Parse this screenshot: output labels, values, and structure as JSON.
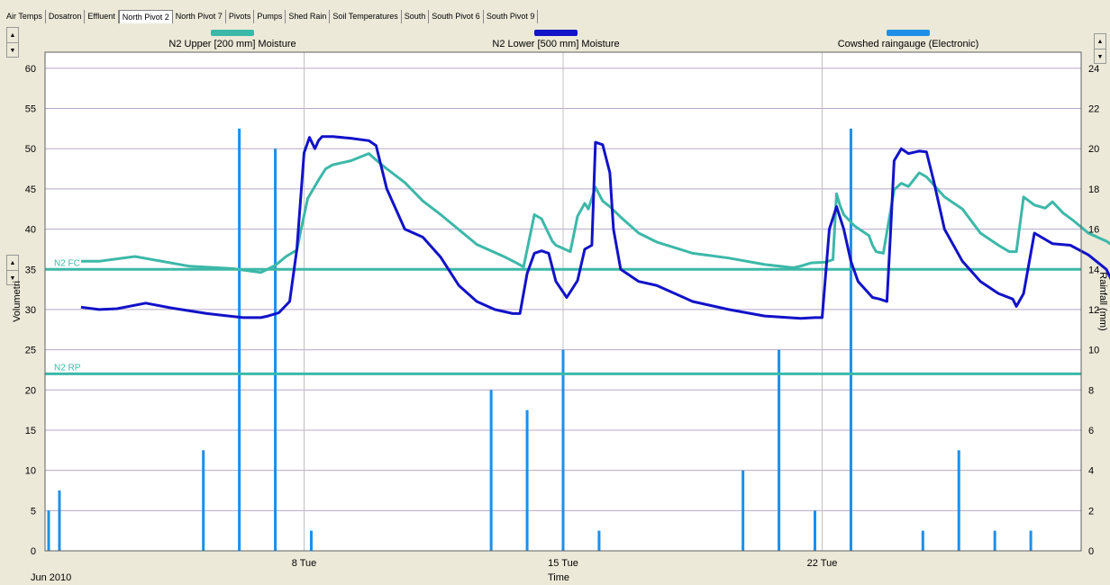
{
  "tabs": [
    "Air Temps",
    "Dosatron",
    "Effluent",
    "North Pivot 2",
    "North Pivot 7",
    "Pivots",
    "Pumps",
    "Shed Rain",
    "Soil Temperatures",
    "South",
    "South Pivot 6",
    "South Pivot 9"
  ],
  "active_tab": "North Pivot 2",
  "colors": {
    "upper": "#3cb8a8",
    "lower": "#1212c8",
    "rain": "#1e8fe8",
    "grid": "#b8a8c8",
    "vgrid": "#c0c0c0"
  },
  "chart_data": {
    "type": "line",
    "xlabel": "Time",
    "x_start_label": "Jun 2010",
    "x_ticks": [
      "8 Tue",
      "15 Tue",
      "22 Tue"
    ],
    "ylabel_left": "Volumetri",
    "ylabel_right": "Rainfall (mm)",
    "ylim_left": [
      0,
      62
    ],
    "ylim_right": [
      0,
      24.8
    ],
    "yticks_left": [
      0,
      5,
      10,
      15,
      20,
      25,
      30,
      35,
      40,
      45,
      50,
      55,
      60
    ],
    "yticks_right": [
      0,
      2,
      4,
      6,
      8,
      10,
      12,
      14,
      16,
      18,
      20,
      22,
      24
    ],
    "grid": true,
    "legend": [
      {
        "name": "N2 Upper  [200 mm] Moisture",
        "color": "#3cb8a8"
      },
      {
        "name": "N2 Lower  [500 mm] Moisture",
        "color": "#1212c8"
      },
      {
        "name": "Cowshed raingauge (Electronic)",
        "color": "#1e8fe8"
      }
    ],
    "reference_lines": [
      {
        "label": "N2 FC",
        "value": 35
      },
      {
        "label": "N2 RP",
        "value": 22
      }
    ],
    "series": [
      {
        "name": "N2 Upper  [200 mm] Moisture",
        "axis": "left",
        "x": [
          1.0,
          1.5,
          2.5,
          4.0,
          5.2,
          6.0,
          6.4,
          6.7,
          7.0,
          7.1,
          7.3,
          7.6,
          7.8,
          8.0,
          8.5,
          9.0,
          9.2,
          9.5,
          10.0,
          10.5,
          11.0,
          12.0,
          12.8,
          13.1,
          13.3,
          13.6,
          13.8,
          14.1,
          14.2,
          14.6,
          14.8,
          15.0,
          15.1,
          15.3,
          15.5,
          15.7,
          16.0,
          16.5,
          17.0,
          18.0,
          19.0,
          20.0,
          20.8,
          21.0,
          21.3,
          21.7,
          21.9,
          22.0,
          22.1,
          22.2,
          22.5,
          22.9,
          23.0,
          23.1,
          23.3,
          23.6,
          23.8,
          24.0,
          24.3,
          24.5,
          25.0,
          25.5,
          26.0,
          26.5,
          26.8,
          27.0,
          27.2,
          27.5,
          27.8,
          28.0,
          28.3,
          28.6,
          29.0,
          29.5,
          29.8
        ],
        "y": [
          36.0,
          36.0,
          36.6,
          35.4,
          35.1,
          34.6,
          35.5,
          36.6,
          37.4,
          39.6,
          43.8,
          46.1,
          47.5,
          48.0,
          48.5,
          49.4,
          48.6,
          47.5,
          45.8,
          43.5,
          41.8,
          38.1,
          36.5,
          35.8,
          35.3,
          41.8,
          41.3,
          38.5,
          38.0,
          37.2,
          41.6,
          43.2,
          42.5,
          45.2,
          43.5,
          42.8,
          41.5,
          39.5,
          38.4,
          37.0,
          36.4,
          35.6,
          35.2,
          35.4,
          35.8,
          35.9,
          36.2,
          44.4,
          42.9,
          41.8,
          40.4,
          39.2,
          38.0,
          37.2,
          37.0,
          44.9,
          45.7,
          45.3,
          47.0,
          46.5,
          44.0,
          42.5,
          39.5,
          38.0,
          37.2,
          37.2,
          44.0,
          43.0,
          42.6,
          43.4,
          42.0,
          41.0,
          39.5,
          38.5,
          37.6
        ]
      },
      {
        "name": "N2 Lower  [500 mm] Moisture",
        "axis": "left",
        "x": [
          1.0,
          1.5,
          2.0,
          2.8,
          3.5,
          4.5,
          5.5,
          6.0,
          6.2,
          6.5,
          6.8,
          7.0,
          7.2,
          7.35,
          7.5,
          7.6,
          7.7,
          8.0,
          8.5,
          9.0,
          9.2,
          9.5,
          10.0,
          10.5,
          11.0,
          11.5,
          12.0,
          12.5,
          13.0,
          13.2,
          13.4,
          13.6,
          13.8,
          14.0,
          14.2,
          14.5,
          14.8,
          15.0,
          15.2,
          15.3,
          15.5,
          15.7,
          15.8,
          16.0,
          16.5,
          17.0,
          18.0,
          19.0,
          20.0,
          21.0,
          21.4,
          21.6,
          21.8,
          22.0,
          22.2,
          22.4,
          22.6,
          22.8,
          23.0,
          23.2,
          23.4,
          23.5,
          23.6,
          23.8,
          24.0,
          24.3,
          24.5,
          24.7,
          25.0,
          25.5,
          26.0,
          26.5,
          26.9,
          27.0,
          27.2,
          27.5,
          28.0,
          28.5,
          29.0,
          29.5,
          29.8
        ],
        "y": [
          30.3,
          30.0,
          30.1,
          30.8,
          30.2,
          29.5,
          29.0,
          29.0,
          29.2,
          29.6,
          31.0,
          37.5,
          49.5,
          51.4,
          50.0,
          51.0,
          51.5,
          51.5,
          51.3,
          51.0,
          50.4,
          45.0,
          40.0,
          39.0,
          36.5,
          33.0,
          31.0,
          30.0,
          29.5,
          29.5,
          34.5,
          37.0,
          37.3,
          37.0,
          33.5,
          31.5,
          33.6,
          37.5,
          38.0,
          50.8,
          50.5,
          47.0,
          40.0,
          35.0,
          33.5,
          33.0,
          31.0,
          30.0,
          29.2,
          28.9,
          29.0,
          29.0,
          40.0,
          42.8,
          40.0,
          36.0,
          33.5,
          32.5,
          31.5,
          31.3,
          31.0,
          39.5,
          48.5,
          50.0,
          49.4,
          49.7,
          49.6,
          46.0,
          40.0,
          36.0,
          33.5,
          32.0,
          31.3,
          30.4,
          32.0,
          39.5,
          38.2,
          38.0,
          36.8,
          35.0,
          32.2
        ]
      },
      {
        "name": "Cowshed raingauge (Electronic)",
        "axis": "right",
        "type": "bar",
        "x": [
          0.1,
          0.4,
          4.4,
          5.4,
          6.4,
          7.4,
          12.4,
          13.4,
          14.4,
          15.4,
          19.4,
          20.4,
          21.4,
          22.4,
          24.4,
          25.4,
          26.4,
          27.4
        ],
        "y": [
          2,
          3,
          5,
          21,
          20,
          1,
          8,
          7,
          10,
          1,
          4,
          10,
          2,
          21,
          1,
          5,
          1,
          1
        ]
      }
    ]
  }
}
